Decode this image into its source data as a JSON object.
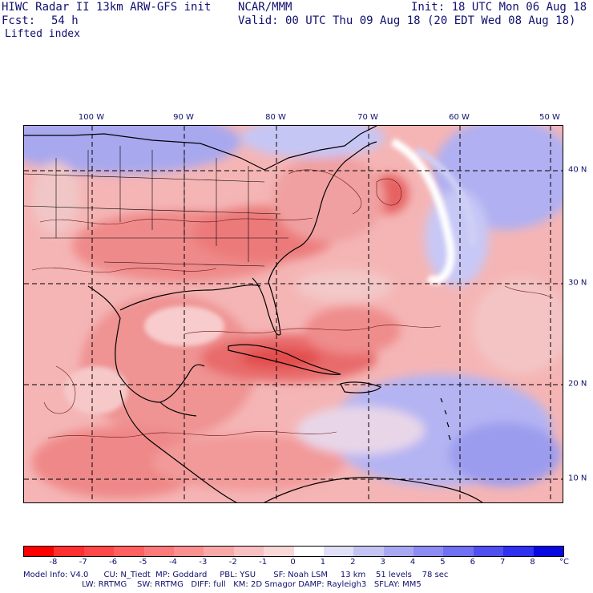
{
  "header": {
    "title": "HIWC Radar II 13km ARW-GFS init",
    "org": "NCAR/MMM",
    "init": "Init: 18 UTC Mon 06 Aug 18",
    "fcst_label": "Fcst:",
    "fcst_value": "54 h",
    "valid": "Valid: 00 UTC Thu 09 Aug 18 (20 EDT Wed 08 Aug 18)",
    "field": "Lifted index"
  },
  "map": {
    "lon_labels": [
      "100 W",
      "90 W",
      "80 W",
      "70 W",
      "60 W",
      "50 W"
    ],
    "lat_labels": [
      "40 N",
      "30 N",
      "20 N",
      "10 N"
    ]
  },
  "colorbar": {
    "labels": [
      "-8",
      "-7",
      "-6",
      "-5",
      "-4",
      "-3",
      "-2",
      "-1",
      "0",
      "1",
      "2",
      "3",
      "4",
      "5",
      "6",
      "7",
      "8"
    ],
    "unit": "°C",
    "colors": [
      "#ff0000",
      "#ff3030",
      "#ff4848",
      "#ff6060",
      "#fd7a7a",
      "#fb9090",
      "#f9a8a8",
      "#f8c0c0",
      "#fad8d8",
      "#ffffff",
      "#e0e0f6",
      "#c4c4f4",
      "#a8a8f2",
      "#8c8cf2",
      "#7070f2",
      "#5050f0",
      "#3030f0",
      "#0808e0"
    ]
  },
  "model_info": {
    "line1": "Model Info: V4.0      CU: N_Tiedt  MP: Goddard     PBL: YSU       SF: Noah LSM     13 km    51 levels    78 sec",
    "line2": "                       LW: RRTMG    SW: RRTMG   DIFF: full   KM: 2D Smagor DAMP: Rayleigh3   SFLAY: MM5"
  }
}
